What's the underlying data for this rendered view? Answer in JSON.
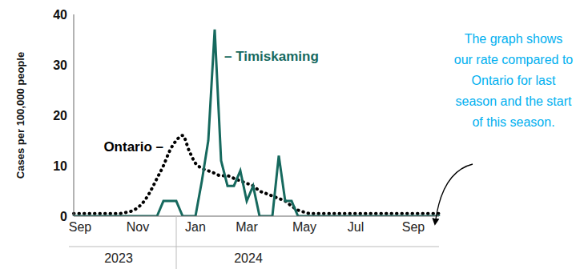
{
  "chart_data": {
    "type": "line",
    "y_label": "Cases per 100,000 people",
    "categories": [
      null,
      "Sep",
      null,
      null,
      null,
      null,
      null,
      null,
      null,
      null,
      "Nov",
      null,
      null,
      null,
      null,
      null,
      null,
      null,
      null,
      "Jan",
      null,
      null,
      null,
      null,
      null,
      null,
      null,
      "Mar",
      null,
      null,
      null,
      null,
      null,
      null,
      null,
      null,
      "May",
      null,
      null,
      null,
      null,
      null,
      null,
      null,
      "Jul",
      null,
      null,
      null,
      null,
      null,
      null,
      null,
      null,
      "Sep",
      null,
      null,
      null,
      null
    ],
    "x_groups": [
      {
        "label": "2023",
        "start": 0
      },
      {
        "label": "2024",
        "start": 16
      }
    ],
    "series": [
      {
        "name": "Ontario",
        "color": "#000000",
        "line_style": "dotted",
        "values": [
          0.5,
          0.5,
          0.5,
          0.5,
          0.5,
          0.5,
          0.5,
          0.5,
          0.7,
          1,
          1.7,
          3,
          5,
          7.5,
          10,
          13,
          15,
          16,
          13,
          10.5,
          9.5,
          9,
          8.5,
          8,
          8,
          7.5,
          7,
          6.5,
          6,
          5,
          4.5,
          4,
          3.5,
          3,
          2,
          1.2,
          0.8,
          0.5,
          0.5,
          0.5,
          0.5,
          0.5,
          0.5,
          0.5,
          0.5,
          0.5,
          0.5,
          0.5,
          0.5,
          0.5,
          0.5,
          0.5,
          0.5,
          0.5,
          0.5,
          0.5,
          0.5,
          0.5
        ]
      },
      {
        "name": "Timiskaming",
        "color": "#16695e",
        "line_style": "solid",
        "values": [
          0,
          0,
          0,
          0,
          0,
          0,
          0,
          0,
          0,
          0,
          0,
          0,
          0,
          0,
          3,
          3,
          3,
          0,
          0,
          0,
          7,
          15,
          37,
          11,
          6,
          6,
          9,
          3,
          6,
          0,
          0,
          0,
          12,
          3,
          3,
          0,
          0,
          0,
          0,
          0,
          0,
          0,
          0,
          0,
          0,
          0,
          0,
          0,
          0,
          0,
          0,
          0,
          0,
          0,
          0,
          0,
          0,
          0
        ]
      }
    ],
    "ylim": [
      0,
      40
    ],
    "yticks": [
      0,
      10,
      20,
      30,
      40
    ],
    "grid": false,
    "annotations": [
      {
        "text": "Ontario –",
        "series": "Ontario"
      },
      {
        "text": "– Timiskaming",
        "series": "Timiskaming"
      },
      {
        "text": "The graph shows our rate compared to Ontario for last season and the start of this season.",
        "color": "#00b0f0"
      }
    ]
  }
}
